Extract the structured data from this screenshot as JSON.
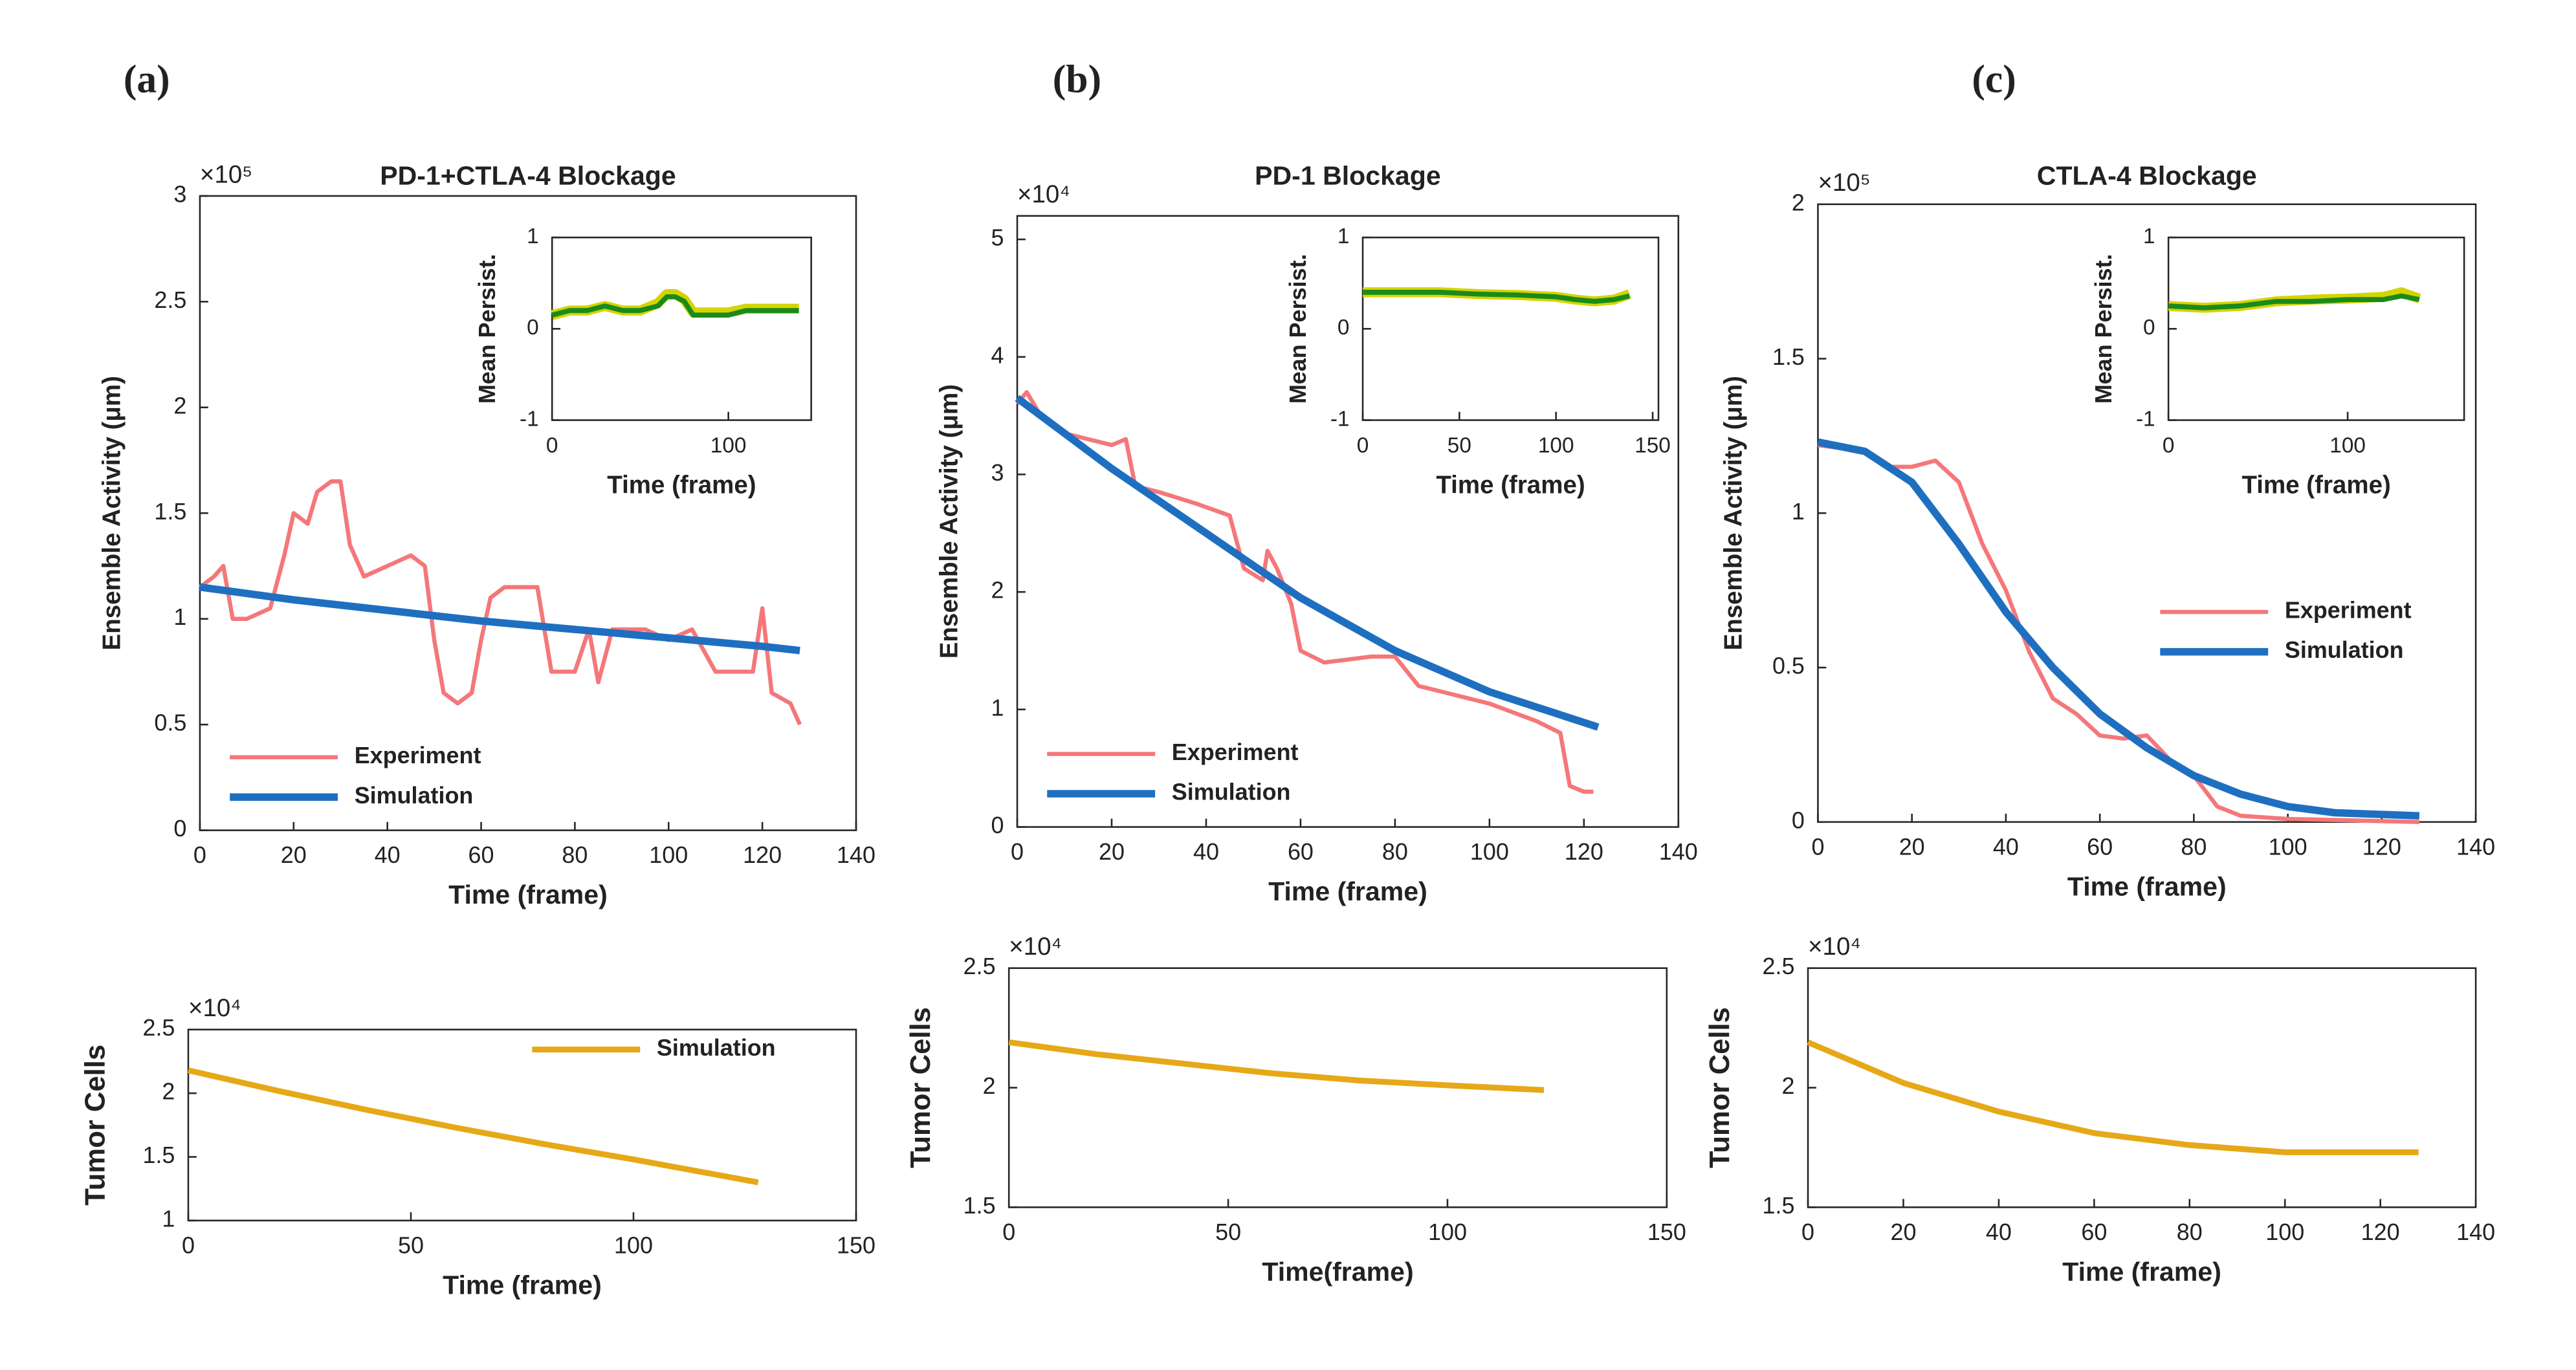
{
  "chart_data": [
    {
      "type": "line",
      "panel_label": "(a)",
      "title": "PD-1+CTLA-4 Blockage",
      "y_multiplier": "×10⁵",
      "xlabel": "Time (frame)",
      "ylabel": "Ensemble Activity (μm)",
      "xlim": [
        0,
        140
      ],
      "xticks": [
        0,
        20,
        40,
        60,
        80,
        100,
        120,
        140
      ],
      "ylim": [
        0,
        3
      ],
      "yticks": [
        0,
        0.5,
        1,
        1.5,
        2,
        2.5,
        3
      ],
      "legend": "lower left",
      "series": [
        {
          "name": "Experiment",
          "color": "#f4777a",
          "x": [
            0,
            3,
            5,
            7,
            10,
            15,
            18,
            20,
            23,
            25,
            28,
            30,
            32,
            35,
            40,
            45,
            48,
            50,
            52,
            55,
            58,
            60,
            62,
            65,
            72,
            75,
            80,
            83,
            85,
            88,
            95,
            100,
            105,
            110,
            118,
            120,
            122,
            126,
            128
          ],
          "values": [
            1.15,
            1.2,
            1.25,
            1.0,
            1.0,
            1.05,
            1.3,
            1.5,
            1.45,
            1.6,
            1.65,
            1.65,
            1.35,
            1.2,
            1.25,
            1.3,
            1.25,
            0.9,
            0.65,
            0.6,
            0.65,
            0.9,
            1.1,
            1.15,
            1.15,
            0.75,
            0.75,
            0.95,
            0.7,
            0.95,
            0.95,
            0.9,
            0.95,
            0.75,
            0.75,
            1.05,
            0.65,
            0.6,
            0.5
          ]
        },
        {
          "name": "Simulation",
          "color": "#1f6fc0",
          "x": [
            0,
            20,
            40,
            60,
            80,
            100,
            120,
            128
          ],
          "values": [
            1.15,
            1.09,
            1.04,
            0.99,
            0.95,
            0.91,
            0.87,
            0.85
          ]
        }
      ]
    },
    {
      "type": "line",
      "xlabel": "Time (frame)",
      "ylabel": "Mean Persist.",
      "xlim": [
        0,
        147
      ],
      "xticks": [
        0,
        100
      ],
      "ylim": [
        -1,
        1
      ],
      "yticks": [
        -1,
        0,
        1
      ],
      "series": [
        {
          "color": "#d4d400",
          "x": [
            0,
            10,
            20,
            30,
            40,
            50,
            60,
            65,
            70,
            75,
            80,
            90,
            100,
            110,
            120,
            130,
            140
          ],
          "values": [
            0.15,
            0.2,
            0.2,
            0.25,
            0.2,
            0.2,
            0.28,
            0.38,
            0.38,
            0.32,
            0.18,
            0.18,
            0.18,
            0.22,
            0.22,
            0.22,
            0.22
          ]
        },
        {
          "color": "#1a8a1a",
          "x": [
            0,
            10,
            20,
            30,
            40,
            50,
            60,
            65,
            70,
            75,
            80,
            90,
            100,
            110,
            120,
            130,
            140
          ],
          "values": [
            0.15,
            0.2,
            0.2,
            0.25,
            0.2,
            0.2,
            0.25,
            0.35,
            0.35,
            0.3,
            0.15,
            0.15,
            0.15,
            0.2,
            0.2,
            0.2,
            0.2
          ]
        }
      ]
    },
    {
      "type": "line",
      "y_multiplier": "×10⁴",
      "xlabel": "Time (frame)",
      "ylabel": "Tumor Cells",
      "xlim": [
        0,
        150
      ],
      "xticks": [
        0,
        50,
        100,
        150
      ],
      "ylim": [
        1,
        2.5
      ],
      "yticks": [
        1,
        1.5,
        2,
        2.5
      ],
      "legend": "upper right",
      "series": [
        {
          "name": "Simulation",
          "color": "#e6a817",
          "x": [
            0,
            20,
            40,
            60,
            80,
            100,
            128
          ],
          "values": [
            2.18,
            2.02,
            1.87,
            1.73,
            1.6,
            1.48,
            1.3
          ]
        }
      ]
    },
    {
      "type": "line",
      "panel_label": "(b)",
      "title": "PD-1 Blockage",
      "y_multiplier": "×10⁴",
      "xlabel": "Time (frame)",
      "ylabel": "Ensemble Activity (μm)",
      "xlim": [
        0,
        140
      ],
      "xticks": [
        0,
        20,
        40,
        60,
        80,
        100,
        120,
        140
      ],
      "ylim": [
        0,
        5.2
      ],
      "yticks": [
        0,
        1,
        2,
        3,
        4,
        5
      ],
      "legend": "lower left",
      "series": [
        {
          "name": "Experiment",
          "color": "#f4777a",
          "x": [
            0,
            2,
            5,
            10,
            15,
            20,
            23,
            25,
            30,
            38,
            45,
            48,
            52,
            53,
            55,
            58,
            60,
            65,
            75,
            80,
            85,
            90,
            100,
            110,
            115,
            117,
            120,
            122
          ],
          "values": [
            3.6,
            3.7,
            3.5,
            3.35,
            3.3,
            3.25,
            3.3,
            2.9,
            2.85,
            2.75,
            2.65,
            2.2,
            2.1,
            2.35,
            2.2,
            1.9,
            1.5,
            1.4,
            1.45,
            1.45,
            1.2,
            1.15,
            1.05,
            0.9,
            0.8,
            0.35,
            0.3,
            0.3
          ]
        },
        {
          "name": "Simulation",
          "color": "#1f6fc0",
          "x": [
            0,
            20,
            40,
            60,
            80,
            100,
            123
          ],
          "values": [
            3.65,
            3.05,
            2.5,
            1.95,
            1.5,
            1.15,
            0.85
          ]
        }
      ]
    },
    {
      "type": "line",
      "xlabel": "Time (frame)",
      "ylabel": "Mean Persist.",
      "xlim": [
        0,
        153
      ],
      "xticks": [
        0,
        50,
        100,
        150
      ],
      "ylim": [
        -1,
        1
      ],
      "yticks": [
        -1,
        0,
        1
      ],
      "series": [
        {
          "color": "#d4d400",
          "x": [
            0,
            20,
            40,
            60,
            80,
            100,
            110,
            120,
            130,
            138
          ],
          "values": [
            0.4,
            0.4,
            0.4,
            0.38,
            0.37,
            0.35,
            0.32,
            0.3,
            0.32,
            0.38
          ]
        },
        {
          "color": "#1a8a1a",
          "x": [
            0,
            20,
            40,
            60,
            80,
            100,
            110,
            120,
            130,
            138
          ],
          "values": [
            0.4,
            0.4,
            0.4,
            0.38,
            0.37,
            0.35,
            0.32,
            0.3,
            0.32,
            0.36
          ]
        }
      ]
    },
    {
      "type": "line",
      "y_multiplier": "×10⁴",
      "xlabel": "Time(frame)",
      "ylabel": "Tumor Cells",
      "xlim": [
        0,
        150
      ],
      "xticks": [
        0,
        50,
        100,
        150
      ],
      "ylim": [
        1.5,
        2.5
      ],
      "yticks": [
        1.5,
        2,
        2.5
      ],
      "series": [
        {
          "color": "#e6a817",
          "x": [
            0,
            20,
            40,
            60,
            80,
            100,
            122
          ],
          "values": [
            2.19,
            2.14,
            2.1,
            2.06,
            2.03,
            2.01,
            1.99
          ]
        }
      ]
    },
    {
      "type": "line",
      "panel_label": "(c)",
      "title": "CTLA-4 Blockage",
      "y_multiplier": "×10⁵",
      "xlabel": "Time (frame)",
      "ylabel": "Ensemble Activity (μm)",
      "xlim": [
        0,
        140
      ],
      "xticks": [
        0,
        20,
        40,
        60,
        80,
        100,
        120,
        140
      ],
      "ylim": [
        0,
        2
      ],
      "yticks": [
        0,
        0.5,
        1,
        1.5,
        2
      ],
      "legend": "right",
      "series": [
        {
          "name": "Experiment",
          "color": "#f4777a",
          "x": [
            0,
            10,
            15,
            20,
            25,
            30,
            35,
            40,
            45,
            50,
            55,
            60,
            65,
            70,
            75,
            80,
            85,
            90,
            100,
            128
          ],
          "values": [
            1.22,
            1.2,
            1.15,
            1.15,
            1.17,
            1.1,
            0.9,
            0.75,
            0.55,
            0.4,
            0.35,
            0.28,
            0.27,
            0.28,
            0.2,
            0.15,
            0.05,
            0.02,
            0.01,
            0
          ]
        },
        {
          "name": "Simulation",
          "color": "#1f6fc0",
          "x": [
            0,
            10,
            20,
            30,
            40,
            50,
            60,
            70,
            80,
            90,
            100,
            110,
            128
          ],
          "values": [
            1.23,
            1.2,
            1.1,
            0.9,
            0.68,
            0.5,
            0.35,
            0.24,
            0.15,
            0.09,
            0.05,
            0.03,
            0.02
          ]
        }
      ]
    },
    {
      "type": "line",
      "xlabel": "Time (frame)",
      "ylabel": "Mean Persist.",
      "xlim": [
        0,
        165
      ],
      "xticks": [
        0,
        100
      ],
      "ylim": [
        -1,
        1
      ],
      "yticks": [
        -1,
        0,
        1
      ],
      "series": [
        {
          "color": "#d4d400",
          "x": [
            0,
            20,
            40,
            60,
            80,
            100,
            120,
            130,
            140
          ],
          "values": [
            0.25,
            0.23,
            0.25,
            0.3,
            0.32,
            0.33,
            0.35,
            0.4,
            0.33
          ]
        },
        {
          "color": "#1a8a1a",
          "x": [
            0,
            20,
            40,
            60,
            80,
            100,
            120,
            130,
            140
          ],
          "values": [
            0.25,
            0.23,
            0.25,
            0.3,
            0.3,
            0.32,
            0.32,
            0.36,
            0.32
          ]
        }
      ]
    },
    {
      "type": "line",
      "y_multiplier": "×10⁴",
      "xlabel": "Time (frame)",
      "ylabel": "Tumor Cells",
      "xlim": [
        0,
        140
      ],
      "xticks": [
        0,
        20,
        40,
        60,
        80,
        100,
        120,
        140
      ],
      "ylim": [
        1.5,
        2.5
      ],
      "yticks": [
        1.5,
        2,
        2.5
      ],
      "series": [
        {
          "color": "#e6a817",
          "x": [
            0,
            20,
            40,
            60,
            80,
            100,
            128
          ],
          "values": [
            2.19,
            2.02,
            1.9,
            1.81,
            1.76,
            1.73,
            1.73
          ]
        }
      ]
    }
  ]
}
